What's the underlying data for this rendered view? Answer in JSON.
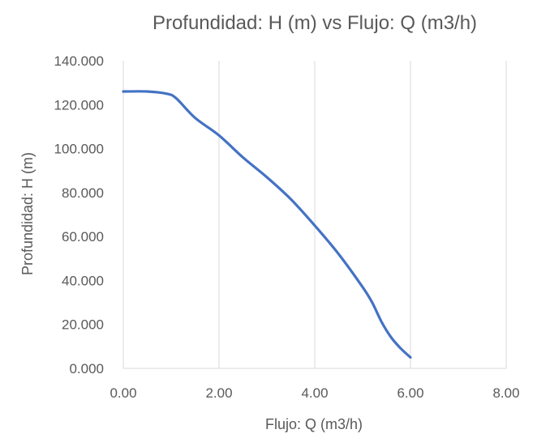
{
  "chart_data": {
    "type": "line",
    "title": "Profundidad:  H (m) vs Flujo:  Q (m3/h)",
    "xlabel": "Flujo: Q (m3/h)",
    "ylabel": "Profundidad: H (m)",
    "xlim": [
      0,
      8
    ],
    "ylim": [
      0,
      140
    ],
    "x_ticks": [
      "0.00",
      "2.00",
      "4.00",
      "6.00",
      "8.00"
    ],
    "y_ticks": [
      "0.000",
      "20.000",
      "40.000",
      "60.000",
      "80.000",
      "100.000",
      "120.000",
      "140.000"
    ],
    "x_tick_values": [
      0,
      2,
      4,
      6,
      8
    ],
    "y_tick_values": [
      0,
      20,
      40,
      60,
      80,
      100,
      120,
      140
    ],
    "grid": "vertical",
    "legend": "none",
    "series": [
      {
        "color": "#4472c4",
        "x": [
          0,
          0.5,
          0.9,
          1.1,
          1.5,
          2.0,
          2.5,
          3.0,
          3.5,
          4.0,
          4.5,
          5.0,
          5.2,
          5.4,
          5.6,
          5.8,
          6.0
        ],
        "y": [
          126,
          126,
          125,
          123,
          114,
          106,
          96,
          87,
          77,
          65,
          52,
          37,
          30,
          21,
          14,
          9,
          5
        ]
      }
    ]
  }
}
